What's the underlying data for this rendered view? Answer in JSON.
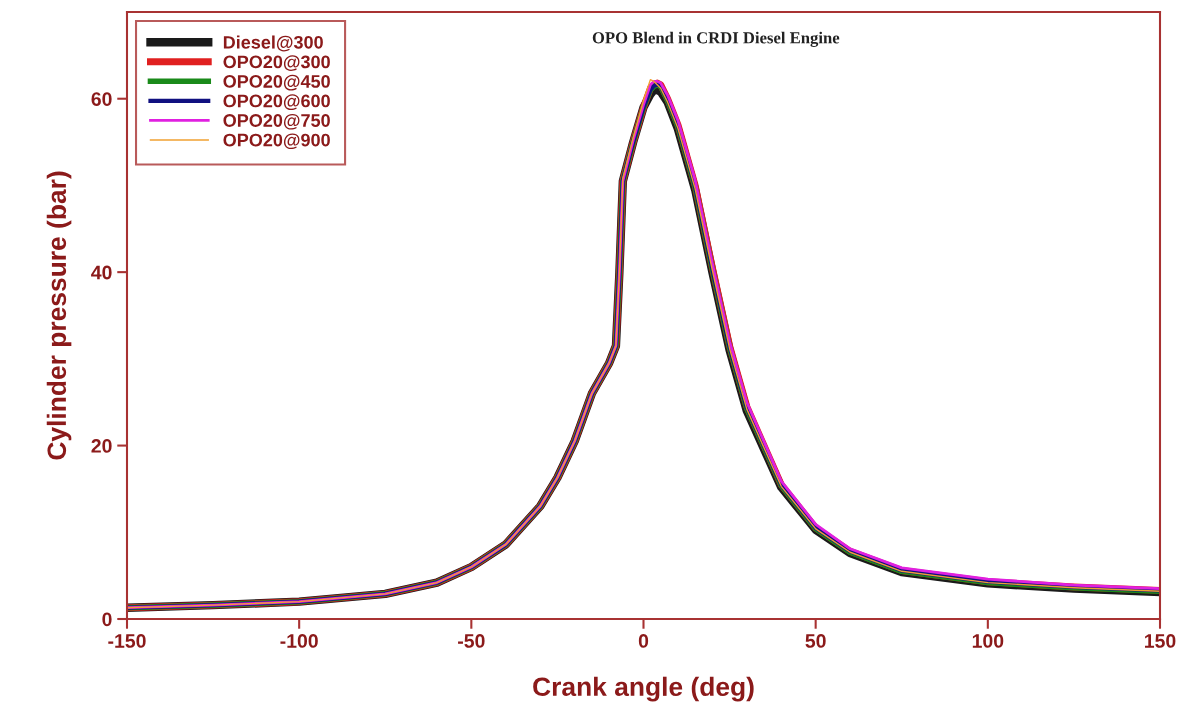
{
  "chart_data": {
    "type": "line",
    "title": "OPO Blend in CRDI Diesel Engine",
    "xlabel": "Crank angle (deg)",
    "ylabel": "Cylinder pressure (bar)",
    "x": [
      -150,
      -125,
      -100,
      -75,
      -60,
      -50,
      -40,
      -30,
      -25,
      -20,
      -15,
      -10,
      -8,
      -7,
      -6,
      -3,
      0,
      2,
      3,
      4,
      5,
      7,
      10,
      15,
      20,
      25,
      30,
      40,
      50,
      60,
      75,
      100,
      125,
      150
    ],
    "series": [
      {
        "name": "Diesel@300",
        "color": "#1a1a1a",
        "values": [
          1.3,
          1.6,
          2.0,
          2.9,
          4.2,
          6.0,
          8.6,
          13.0,
          16.3,
          20.5,
          26.0,
          29.5,
          31.5,
          40.0,
          50.5,
          55.0,
          59.0,
          60.5,
          61.0,
          61.0,
          60.8,
          59.6,
          56.5,
          49.5,
          40.0,
          31.0,
          24.0,
          15.2,
          10.3,
          7.6,
          5.4,
          4.1,
          3.5,
          3.1
        ]
      },
      {
        "name": "OPO20@300",
        "color": "#e02020",
        "values": [
          1.3,
          1.6,
          2.0,
          2.9,
          4.2,
          6.0,
          8.6,
          13.0,
          16.3,
          20.5,
          26.0,
          29.5,
          31.5,
          40.0,
          50.5,
          55.0,
          59.0,
          61.2,
          61.6,
          61.8,
          61.6,
          60.0,
          57.0,
          50.0,
          40.5,
          31.5,
          24.5,
          15.5,
          10.5,
          7.8,
          5.6,
          4.3,
          3.7,
          3.3
        ]
      },
      {
        "name": "OPO20@450",
        "color": "#1a8a1a",
        "values": [
          1.3,
          1.6,
          2.0,
          2.9,
          4.2,
          6.0,
          8.6,
          13.0,
          16.3,
          20.5,
          26.0,
          29.5,
          31.5,
          40.0,
          50.5,
          55.0,
          59.0,
          61.0,
          61.4,
          61.6,
          61.4,
          59.8,
          56.8,
          49.8,
          40.3,
          31.3,
          24.3,
          15.4,
          10.4,
          7.7,
          5.5,
          4.2,
          3.6,
          3.2
        ]
      },
      {
        "name": "OPO20@600",
        "color": "#101080",
        "values": [
          1.3,
          1.6,
          2.0,
          2.9,
          4.2,
          6.0,
          8.6,
          13.0,
          16.3,
          20.5,
          26.0,
          29.5,
          31.5,
          40.0,
          50.5,
          55.0,
          59.0,
          61.0,
          61.5,
          61.6,
          61.5,
          59.9,
          56.9,
          49.9,
          40.4,
          31.4,
          24.4,
          15.5,
          10.5,
          7.8,
          5.6,
          4.3,
          3.7,
          3.3
        ]
      },
      {
        "name": "OPO20@750",
        "color": "#e020e0",
        "values": [
          1.3,
          1.6,
          2.0,
          2.9,
          4.2,
          6.0,
          8.6,
          13.0,
          16.3,
          20.5,
          26.0,
          29.5,
          31.5,
          40.0,
          50.5,
          55.2,
          59.3,
          61.6,
          62.0,
          62.0,
          61.8,
          60.4,
          57.5,
          50.6,
          41.0,
          32.0,
          25.0,
          15.9,
          10.9,
          8.1,
          5.9,
          4.6,
          3.9,
          3.5
        ]
      },
      {
        "name": "OPO20@900",
        "color": "#f0a030",
        "values": [
          1.3,
          1.6,
          2.0,
          2.9,
          4.2,
          6.0,
          8.6,
          13.0,
          16.3,
          20.5,
          26.0,
          29.5,
          31.5,
          40.0,
          50.8,
          55.5,
          59.8,
          62.2,
          62.0,
          61.6,
          61.2,
          59.6,
          56.6,
          49.6,
          40.2,
          31.2,
          24.2,
          15.3,
          10.4,
          7.7,
          5.5,
          4.2,
          3.6,
          3.2
        ]
      }
    ],
    "xlim": [
      -150,
      150
    ],
    "xticks": [
      -150,
      -100,
      -50,
      0,
      50,
      100,
      150
    ],
    "ylim": [
      0,
      70
    ],
    "yticks": [
      0,
      20,
      40,
      60
    ],
    "grid": false,
    "legend": "top left",
    "marker": "none",
    "line_style": "solid"
  }
}
